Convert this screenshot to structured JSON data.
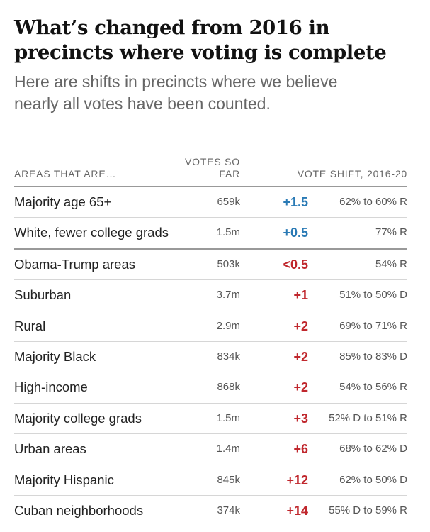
{
  "header": {
    "title_line1": "What’s changed from 2016 in",
    "title_line2": "precincts where voting is complete",
    "subtitle_line1": "Here are shifts in precincts where we believe",
    "subtitle_line2": "nearly all votes have been counted."
  },
  "colors": {
    "dem_shift": "#2a7ab5",
    "rep_shift": "#c0272d"
  },
  "chart_data": {
    "type": "table",
    "title": "What’s changed from 2016 in precincts where voting is complete",
    "subtitle": "Here are shifts in precincts where we believe nearly all votes have been counted.",
    "columns": {
      "area": "AREAS THAT ARE…",
      "votes_line1": "VOTES SO",
      "votes_line2": "FAR",
      "shift": "VOTE SHIFT, 2016-20"
    },
    "rows": [
      {
        "area": "Majority age 65+",
        "votes": "659k",
        "shift": "+1.5",
        "direction": "D",
        "detail": "62% to 60% R"
      },
      {
        "area": "White, fewer college grads",
        "votes": "1.5m",
        "shift": "+0.5",
        "direction": "D",
        "detail": "77% R"
      },
      {
        "area": "Obama-Trump areas",
        "votes": "503k",
        "shift": "<0.5",
        "direction": "R",
        "detail": "54% R"
      },
      {
        "area": "Suburban",
        "votes": "3.7m",
        "shift": "+1",
        "direction": "R",
        "detail": "51% to 50% D"
      },
      {
        "area": "Rural",
        "votes": "2.9m",
        "shift": "+2",
        "direction": "R",
        "detail": "69% to 71% R"
      },
      {
        "area": "Majority Black",
        "votes": "834k",
        "shift": "+2",
        "direction": "R",
        "detail": "85% to 83% D"
      },
      {
        "area": "High-income",
        "votes": "868k",
        "shift": "+2",
        "direction": "R",
        "detail": "54% to 56% R"
      },
      {
        "area": "Majority college grads",
        "votes": "1.5m",
        "shift": "+3",
        "direction": "R",
        "detail": "52% D to 51% R"
      },
      {
        "area": "Urban areas",
        "votes": "1.4m",
        "shift": "+6",
        "direction": "R",
        "detail": "68% to 62% D"
      },
      {
        "area": "Majority Hispanic",
        "votes": "845k",
        "shift": "+12",
        "direction": "R",
        "detail": "62% to 50% D"
      },
      {
        "area": "Cuban neighborhoods",
        "votes": "374k",
        "shift": "+14",
        "direction": "R",
        "detail": "55% D to 59% R"
      }
    ]
  }
}
